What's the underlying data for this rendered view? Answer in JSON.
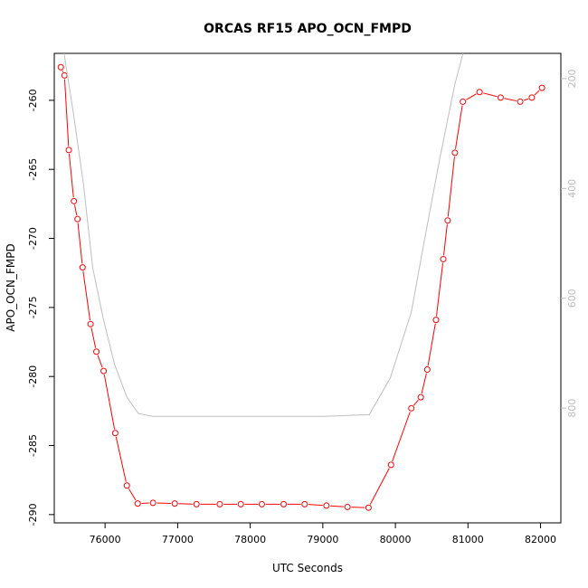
{
  "chart_data": {
    "type": "line",
    "title": "ORCAS RF15 APO_OCN_FMPD",
    "xlabel": "UTC Seconds",
    "ylabel": "APO_OCN_FMPD",
    "xlim": [
      75300,
      82280
    ],
    "ylim": [
      -290.6,
      -256.6
    ],
    "y2lim": [
      1009,
      154
    ],
    "xticks": [
      76000,
      77000,
      78000,
      79000,
      80000,
      81000,
      82000
    ],
    "yticks": [
      -290,
      -285,
      -280,
      -275,
      -270,
      -265,
      -260
    ],
    "y2ticks": [
      200,
      400,
      600,
      800
    ],
    "grid": false,
    "legend": "none",
    "colors": {
      "series": "#ff0000",
      "secondary": "#bebebe",
      "axis": "#000000",
      "secondary_axis": "#bdbdbd"
    },
    "series": [
      {
        "axis": "left",
        "marker": "open-circle",
        "x": [
          75390,
          75440,
          75500,
          75570,
          75620,
          75690,
          75800,
          75880,
          75980,
          76140,
          76300,
          76450,
          76660,
          76960,
          77260,
          77580,
          77870,
          78160,
          78460,
          78750,
          79050,
          79340,
          79630,
          79940,
          80220,
          80350,
          80440,
          80560,
          80660,
          80720,
          80820,
          80930,
          81160,
          81450,
          81720,
          81880,
          82020
        ],
        "y": [
          -257.6,
          -258.2,
          -263.6,
          -267.3,
          -268.6,
          -272.1,
          -276.2,
          -278.2,
          -279.6,
          -284.1,
          -287.9,
          -289.2,
          -289.15,
          -289.2,
          -289.25,
          -289.25,
          -289.25,
          -289.25,
          -289.25,
          -289.25,
          -289.35,
          -289.45,
          -289.5,
          -286.4,
          -282.3,
          -281.5,
          -279.5,
          -275.9,
          -271.5,
          -268.7,
          -263.8,
          -260.1,
          -259.4,
          -259.8,
          -260.1,
          -259.8,
          -259.1
        ]
      },
      {
        "axis": "right",
        "marker": "none",
        "x": [
          75430,
          75560,
          75700,
          75830,
          75980,
          76130,
          76300,
          76460,
          76660,
          79000,
          79640,
          79930,
          80220,
          80420,
          80620,
          80820,
          80940
        ],
        "y": [
          150,
          260,
          390,
          545,
          640,
          720,
          780,
          810,
          815,
          815,
          812,
          745,
          625,
          480,
          340,
          210,
          150
        ]
      }
    ]
  }
}
